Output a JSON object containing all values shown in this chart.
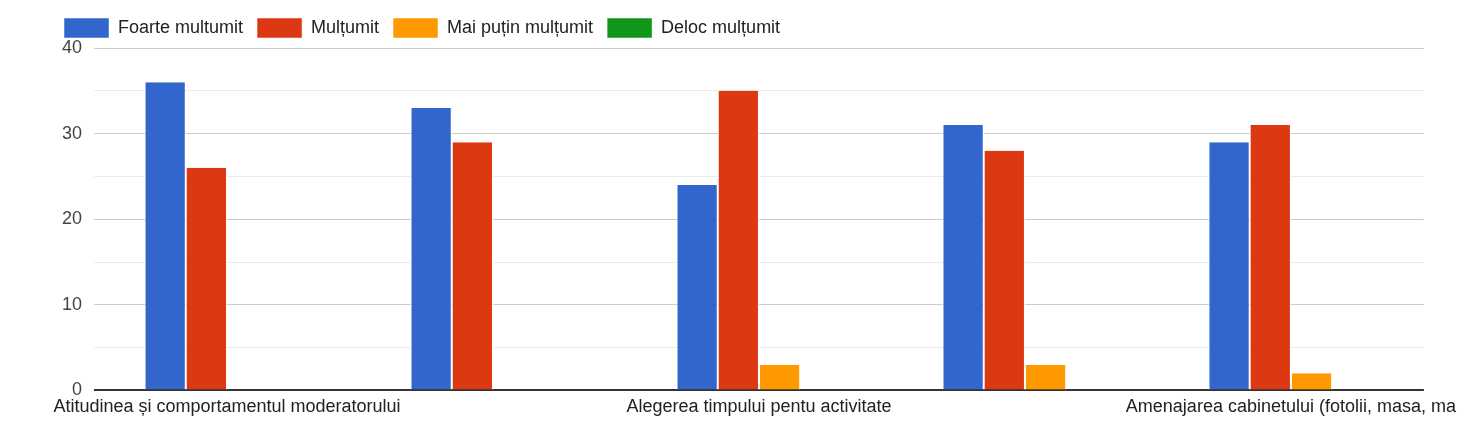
{
  "chart_data": {
    "type": "bar",
    "categories": [
      "Atitudinea și comportamentul moderatorului",
      null,
      "Alegerea timpului pentu activitate",
      null,
      "Amenajarea cabinetului (fotolii, masa, ma"
    ],
    "series": [
      {
        "name": "Foarte multumit",
        "color": "#3366cc",
        "values": [
          36,
          33,
          24,
          31,
          29
        ]
      },
      {
        "name": "Mulțumit",
        "color": "#dc3912",
        "values": [
          26,
          29,
          35,
          28,
          31
        ]
      },
      {
        "name": "Mai puțin mulțumit",
        "color": "#ff9900",
        "values": [
          0,
          0,
          3,
          3,
          2
        ]
      },
      {
        "name": "Deloc mulțumit",
        "color": "#109618",
        "values": [
          0,
          0,
          0,
          0,
          0
        ]
      }
    ],
    "ylim": [
      0,
      40
    ],
    "yticks": [
      0,
      {
        "value": 5,
        "label": null
      },
      10,
      {
        "value": 15,
        "label": null
      },
      20,
      {
        "value": 25,
        "label": null
      },
      30,
      {
        "value": 35,
        "label": null
      },
      40
    ],
    "grid": "y",
    "legend": "top left"
  }
}
